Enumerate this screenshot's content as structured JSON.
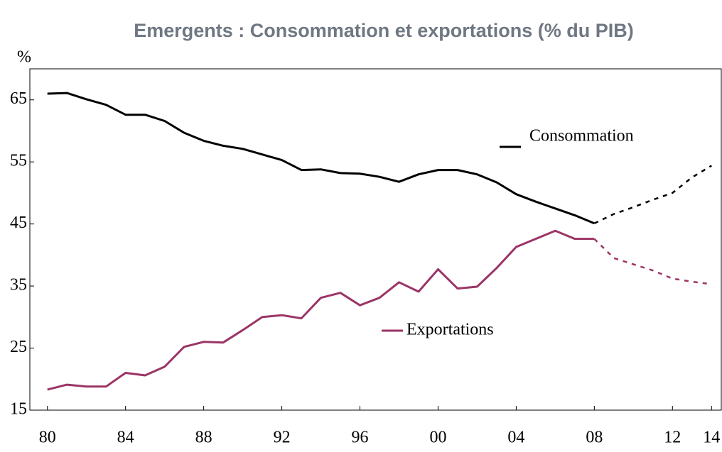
{
  "chart_data": {
    "type": "line",
    "title": "Emergents : Consommation et exportations (% du PIB)",
    "y_label": "%",
    "x": [
      1980,
      1981,
      1982,
      1983,
      1984,
      1985,
      1986,
      1987,
      1988,
      1989,
      1990,
      1991,
      1992,
      1993,
      1994,
      1995,
      1996,
      1997,
      1998,
      1999,
      2000,
      2001,
      2002,
      2003,
      2004,
      2005,
      2006,
      2007,
      2008,
      2009,
      2010,
      2011,
      2012,
      2013,
      2014
    ],
    "forecast_from": 2008,
    "series": [
      {
        "name": "Consommation",
        "color": "#000000",
        "values": [
          66.0,
          66.1,
          65.1,
          64.2,
          62.6,
          62.6,
          61.6,
          59.7,
          58.4,
          57.6,
          57.1,
          56.2,
          55.3,
          53.7,
          53.8,
          53.2,
          53.1,
          52.6,
          51.8,
          53.0,
          53.7,
          53.7,
          53.0,
          51.7,
          49.8,
          48.6,
          47.5,
          46.4,
          45.1,
          46.6,
          47.7,
          48.9,
          50.0,
          52.5,
          54.4
        ]
      },
      {
        "name": "Exportations",
        "color": "#9b3566",
        "values": [
          18.3,
          19.1,
          18.8,
          18.8,
          21.0,
          20.6,
          22.0,
          25.2,
          26.0,
          25.9,
          27.9,
          30.0,
          30.3,
          29.8,
          33.1,
          33.9,
          31.9,
          33.1,
          35.6,
          34.1,
          37.7,
          34.6,
          34.9,
          37.9,
          41.3,
          42.6,
          43.9,
          42.6,
          42.6,
          39.5,
          38.5,
          37.5,
          36.2,
          35.7,
          35.3
        ]
      }
    ],
    "xlim": [
      1979.1,
      2014.5
    ],
    "xticks": [
      {
        "value": 1980,
        "label": "80"
      },
      {
        "value": 1984,
        "label": "84"
      },
      {
        "value": 1988,
        "label": "88"
      },
      {
        "value": 1992,
        "label": "92"
      },
      {
        "value": 1996,
        "label": "96"
      },
      {
        "value": 2000,
        "label": "00"
      },
      {
        "value": 2004,
        "label": "04"
      },
      {
        "value": 2008,
        "label": "08"
      },
      {
        "value": 2012,
        "label": "12"
      },
      {
        "value": 2014,
        "label": "14"
      }
    ],
    "ylim": [
      15,
      70
    ],
    "yticks": [
      15,
      25,
      35,
      45,
      55,
      65
    ]
  }
}
